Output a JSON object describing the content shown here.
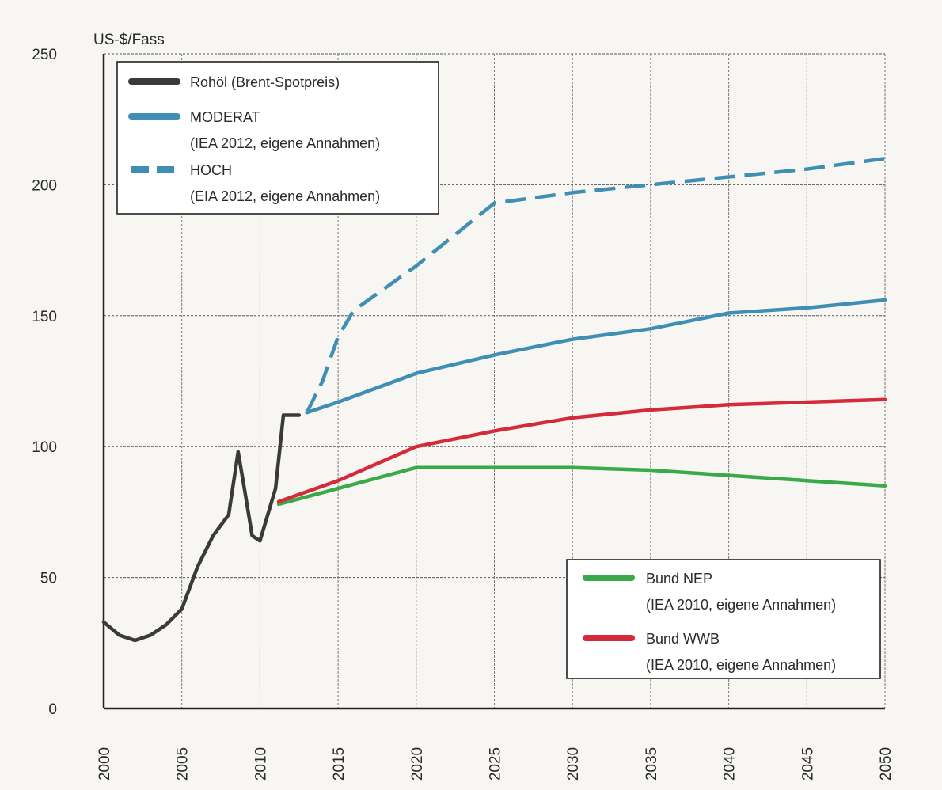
{
  "chart_data": {
    "type": "line",
    "ylabel": "US-$/Fass",
    "xlim": [
      2000,
      2050
    ],
    "ylim": [
      0,
      250
    ],
    "x_ticks": [
      2000,
      2005,
      2010,
      2015,
      2020,
      2025,
      2030,
      2035,
      2040,
      2045,
      2050
    ],
    "y_ticks": [
      0,
      50,
      100,
      150,
      200,
      250
    ],
    "grid": true,
    "series": [
      {
        "name": "Rohöl (Brent-Spotpreis)",
        "color": "#3a3a3a",
        "style": "solid",
        "points": [
          [
            2000,
            33
          ],
          [
            2001,
            28
          ],
          [
            2002,
            26
          ],
          [
            2003,
            28
          ],
          [
            2004,
            32
          ],
          [
            2005,
            38
          ],
          [
            2006,
            54
          ],
          [
            2007,
            66
          ],
          [
            2008,
            74
          ],
          [
            2008.6,
            98
          ],
          [
            2009,
            84
          ],
          [
            2009.5,
            66
          ],
          [
            2010,
            64
          ],
          [
            2011,
            84
          ],
          [
            2011.5,
            112
          ],
          [
            2012.5,
            112
          ]
        ]
      },
      {
        "name": "MODERAT",
        "note": "(IEA 2012, eigene Annahmen)",
        "color": "#3f8fb5",
        "style": "solid",
        "points": [
          [
            2013,
            113
          ],
          [
            2015,
            117
          ],
          [
            2020,
            128
          ],
          [
            2025,
            135
          ],
          [
            2030,
            141
          ],
          [
            2035,
            145
          ],
          [
            2040,
            151
          ],
          [
            2045,
            153
          ],
          [
            2050,
            156
          ]
        ]
      },
      {
        "name": "HOCH",
        "note": "(EIA 2012, eigene Annahmen)",
        "color": "#3f8fb5",
        "style": "dashed",
        "points": [
          [
            2013,
            113
          ],
          [
            2014,
            125
          ],
          [
            2015,
            142
          ],
          [
            2016,
            152
          ],
          [
            2020,
            169
          ],
          [
            2025,
            193
          ],
          [
            2030,
            197
          ],
          [
            2035,
            200
          ],
          [
            2040,
            203
          ],
          [
            2045,
            206
          ],
          [
            2050,
            210
          ]
        ]
      },
      {
        "name": "Bund NEP",
        "note": "(IEA 2010, eigene Annahmen)",
        "color": "#3aaa48",
        "style": "solid",
        "points": [
          [
            2011.2,
            78
          ],
          [
            2015,
            84
          ],
          [
            2020,
            92
          ],
          [
            2025,
            92
          ],
          [
            2030,
            92
          ],
          [
            2035,
            91
          ],
          [
            2040,
            89
          ],
          [
            2045,
            87
          ],
          [
            2050,
            85
          ]
        ]
      },
      {
        "name": "Bund WWB",
        "note": "(IEA 2010, eigene Annahmen)",
        "color": "#d42a3a",
        "style": "solid",
        "points": [
          [
            2011.2,
            79
          ],
          [
            2015,
            87
          ],
          [
            2020,
            100
          ],
          [
            2025,
            106
          ],
          [
            2030,
            111
          ],
          [
            2035,
            114
          ],
          [
            2040,
            116
          ],
          [
            2045,
            117
          ],
          [
            2050,
            118
          ]
        ]
      }
    ],
    "legend_top_left": [
      "Rohöl (Brent-Spotpreis)",
      "MODERAT",
      "HOCH"
    ],
    "legend_bottom_right": [
      "Bund NEP",
      "Bund WWB"
    ]
  }
}
